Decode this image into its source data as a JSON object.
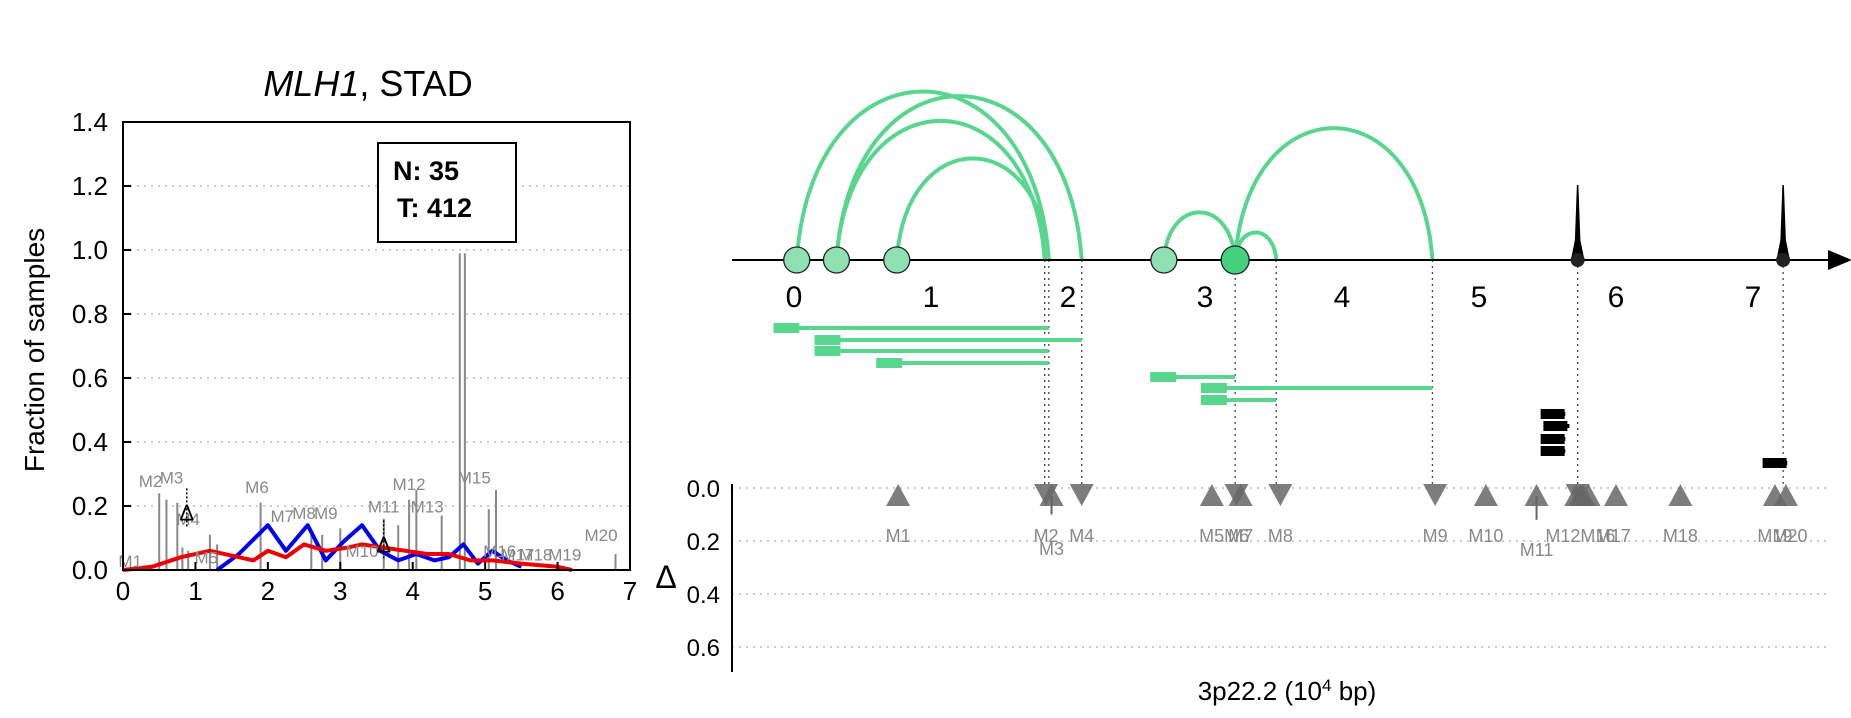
{
  "chart_data": [
    {
      "type": "line",
      "title_gene": "MLH1",
      "title_rest": ", STAD",
      "ylabel": "Fraction of samples",
      "xlim": [
        0,
        7
      ],
      "ylim": [
        0,
        1.4
      ],
      "xticks": [
        "0",
        "1",
        "2",
        "3",
        "4",
        "5",
        "6",
        "7"
      ],
      "yticks": [
        "0.0",
        "0.2",
        "0.4",
        "0.6",
        "0.8",
        "1.0",
        "1.2",
        "1.4"
      ],
      "grid": "horizontal dotted",
      "box": {
        "n_label": "N: 35",
        "t_label": "T: 412"
      },
      "markers": [
        {
          "label": "M1",
          "x": 0.1,
          "y": 0.01
        },
        {
          "label": "M2",
          "x": 0.38,
          "y": 0.26
        },
        {
          "label": "M3",
          "x": 0.67,
          "y": 0.27
        },
        {
          "label": "M4",
          "x": 0.9,
          "y": 0.14
        },
        {
          "label": "M5",
          "x": 1.15,
          "y": 0.02
        },
        {
          "label": "M6",
          "x": 1.85,
          "y": 0.24
        },
        {
          "label": "M7",
          "x": 2.2,
          "y": 0.15
        },
        {
          "label": "M8",
          "x": 2.5,
          "y": 0.16
        },
        {
          "label": "M9",
          "x": 2.8,
          "y": 0.16
        },
        {
          "label": "M10",
          "x": 3.3,
          "y": 0.04
        },
        {
          "label": "M11",
          "x": 3.6,
          "y": 0.18
        },
        {
          "label": "M12",
          "x": 3.95,
          "y": 0.25
        },
        {
          "label": "M13",
          "x": 4.2,
          "y": 0.18
        },
        {
          "label": "M15",
          "x": 4.85,
          "y": 0.27
        },
        {
          "label": "M16",
          "x": 5.2,
          "y": 0.04
        },
        {
          "label": "M17",
          "x": 5.45,
          "y": 0.03
        },
        {
          "label": "M18",
          "x": 5.7,
          "y": 0.03
        },
        {
          "label": "M19",
          "x": 6.1,
          "y": 0.03
        },
        {
          "label": "M20",
          "x": 6.6,
          "y": 0.09
        }
      ],
      "delta_markers": [
        {
          "label": "Δ",
          "x": 0.88,
          "y": 0.18
        },
        {
          "label": "Δ",
          "x": 3.6,
          "y": 0.08
        }
      ],
      "bars": [
        {
          "x": 0.5,
          "y": 0.24
        },
        {
          "x": 0.6,
          "y": 0.22
        },
        {
          "x": 0.75,
          "y": 0.21
        },
        {
          "x": 0.82,
          "y": 0.07
        },
        {
          "x": 0.9,
          "y": 0.06
        },
        {
          "x": 1.2,
          "y": 0.11
        },
        {
          "x": 1.3,
          "y": 0.08
        },
        {
          "x": 1.9,
          "y": 0.21
        },
        {
          "x": 2.6,
          "y": 0.12
        },
        {
          "x": 2.75,
          "y": 0.11
        },
        {
          "x": 3.0,
          "y": 0.13
        },
        {
          "x": 3.6,
          "y": 0.16
        },
        {
          "x": 3.8,
          "y": 0.14
        },
        {
          "x": 3.95,
          "y": 0.22
        },
        {
          "x": 4.05,
          "y": 0.25
        },
        {
          "x": 4.4,
          "y": 0.17
        },
        {
          "x": 4.65,
          "y": 0.99
        },
        {
          "x": 4.72,
          "y": 0.99
        },
        {
          "x": 5.05,
          "y": 0.19
        },
        {
          "x": 5.15,
          "y": 0.25
        },
        {
          "x": 6.8,
          "y": 0.05
        }
      ],
      "series": [
        {
          "color": "#0000ee",
          "x": [
            1.3,
            1.6,
            2.0,
            2.25,
            2.55,
            2.8,
            3.05,
            3.3,
            3.55,
            3.8,
            4.05,
            4.3,
            4.5,
            4.7,
            4.9,
            5.1,
            5.3,
            5.5
          ],
          "y": [
            0.0,
            0.05,
            0.14,
            0.06,
            0.14,
            0.03,
            0.09,
            0.14,
            0.06,
            0.03,
            0.05,
            0.03,
            0.04,
            0.08,
            0.02,
            0.06,
            0.03,
            0.01
          ]
        },
        {
          "color": "#ee0000",
          "x": [
            0.0,
            0.4,
            0.8,
            1.2,
            1.6,
            1.8,
            2.0,
            2.25,
            2.5,
            2.8,
            3.1,
            3.3,
            3.6,
            3.9,
            4.2,
            4.5,
            4.8,
            5.1,
            5.5,
            6.0,
            6.2
          ],
          "y": [
            0.0,
            0.01,
            0.04,
            0.06,
            0.04,
            0.03,
            0.06,
            0.04,
            0.08,
            0.06,
            0.07,
            0.08,
            0.07,
            0.06,
            0.05,
            0.05,
            0.03,
            0.03,
            0.02,
            0.01,
            0.0
          ]
        }
      ]
    },
    {
      "type": "arc",
      "xlabel_pre": "3p22.2 (10",
      "xlabel_sup": "4",
      "xlabel_post": " bp)",
      "delta_label": "Δ",
      "xlim": [
        -0.4,
        7.6
      ],
      "xticks": [
        "0",
        "1",
        "2",
        "3",
        "4",
        "5",
        "6",
        "7"
      ],
      "delta_ticks": [
        "0.0",
        "0.2",
        "0.4",
        "0.6"
      ],
      "arc_color": "#58d68d",
      "junctions": [
        {
          "from": 0.02,
          "to": 1.86
        },
        {
          "from": 0.31,
          "to": 1.83
        },
        {
          "from": 0.31,
          "to": 2.1
        },
        {
          "from": 0.75,
          "to": 1.86
        },
        {
          "from": 2.7,
          "to": 3.22
        },
        {
          "from": 3.22,
          "to": 3.52
        },
        {
          "from": 3.22,
          "to": 4.66
        }
      ],
      "start_sites": [
        0.02,
        0.31,
        0.75,
        2.7,
        3.22
      ],
      "peaks": [
        5.72,
        7.22
      ],
      "isoforms": [
        {
          "start": -0.15,
          "end": 1.86,
          "track": 0
        },
        {
          "start": 0.15,
          "end": 2.1,
          "track": 1
        },
        {
          "start": 0.15,
          "end": 1.86,
          "track": 2
        },
        {
          "start": 0.6,
          "end": 1.86,
          "track": 3
        },
        {
          "start": 2.6,
          "end": 3.22,
          "track": 4
        },
        {
          "start": 2.97,
          "end": 4.66,
          "track": 5
        },
        {
          "start": 2.97,
          "end": 3.52,
          "track": 6
        }
      ],
      "black_blocks": [
        {
          "start": 5.45,
          "end": 5.63,
          "track": 0
        },
        {
          "start": 5.47,
          "end": 5.66,
          "track": 1
        },
        {
          "start": 5.45,
          "end": 5.63,
          "track": 2
        },
        {
          "start": 5.45,
          "end": 5.63,
          "track": 3
        },
        {
          "start": 7.07,
          "end": 7.25,
          "track": 4
        }
      ],
      "mutations": [
        {
          "label": "M1",
          "x": 0.76,
          "dir": "up",
          "delta": 0.0
        },
        {
          "label": "M2",
          "x": 1.84,
          "dir": "down",
          "delta": 0.0
        },
        {
          "label": "M3",
          "x": 1.88,
          "dir": "up",
          "delta": 0.1
        },
        {
          "label": "M4",
          "x": 2.1,
          "dir": "down",
          "delta": 0.0
        },
        {
          "label": "M5",
          "x": 3.05,
          "dir": "up",
          "delta": 0.0
        },
        {
          "label": "M6",
          "x": 3.23,
          "dir": "down",
          "delta": 0.0
        },
        {
          "label": "M7",
          "x": 3.26,
          "dir": "up",
          "delta": 0.0
        },
        {
          "label": "M8",
          "x": 3.55,
          "dir": "down",
          "delta": 0.0
        },
        {
          "label": "M9",
          "x": 4.68,
          "dir": "down",
          "delta": 0.0
        },
        {
          "label": "M10",
          "x": 5.05,
          "dir": "up",
          "delta": 0.0
        },
        {
          "label": "M11",
          "x": 5.42,
          "dir": "up",
          "delta": 0.12
        },
        {
          "label": "M12",
          "x": 5.71,
          "dir": "up",
          "delta": 0.0
        },
        {
          "label": "M13",
          "x": 5.72,
          "dir": "down",
          "delta": 0.0
        },
        {
          "label": "M14",
          "x": 5.74,
          "dir": "up",
          "delta": 0.0
        },
        {
          "label": "M15",
          "x": 5.76,
          "dir": "up",
          "delta": 0.0
        },
        {
          "label": "M16",
          "x": 5.8,
          "dir": "up",
          "delta": 0.0
        },
        {
          "label": "M17",
          "x": 6.0,
          "dir": "up",
          "delta": 0.0
        },
        {
          "label": "M18",
          "x": 6.47,
          "dir": "up",
          "delta": 0.0
        },
        {
          "label": "M19",
          "x": 7.16,
          "dir": "up",
          "delta": 0.0
        },
        {
          "label": "M20",
          "x": 7.24,
          "dir": "up",
          "delta": 0.0
        }
      ],
      "mutation_label_text": [
        "M1",
        "M2",
        "M3",
        "M4",
        "M5M6",
        "M7",
        "M8",
        "M9",
        "M10",
        "M11",
        "M12M16",
        "M17",
        "M18",
        "M19",
        "M20"
      ]
    }
  ]
}
